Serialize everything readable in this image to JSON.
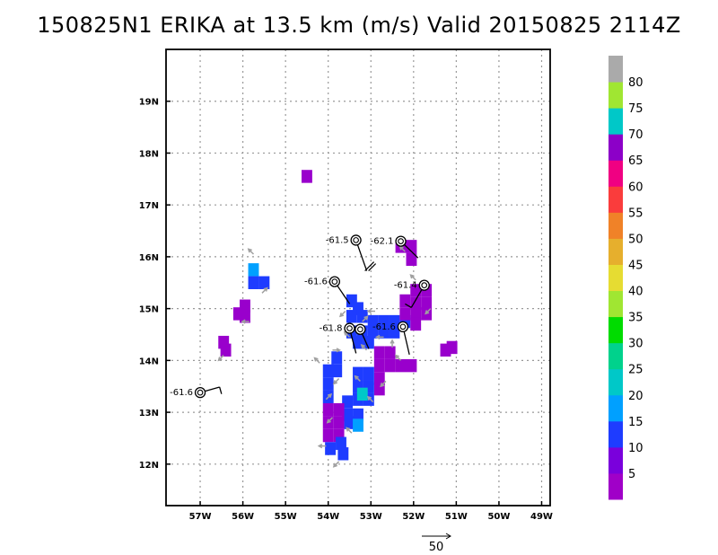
{
  "title": "150825N1 ERIKA at 13.5 km (m/s) Valid 20150825 2114Z",
  "map": {
    "lon_range": [
      -57.8,
      -48.8
    ],
    "lat_range": [
      11.2,
      20.0
    ],
    "lon_ticks": [
      {
        "v": -57,
        "label": "57W"
      },
      {
        "v": -56,
        "label": "56W"
      },
      {
        "v": -55,
        "label": "55W"
      },
      {
        "v": -54,
        "label": "54W"
      },
      {
        "v": -53,
        "label": "53W"
      },
      {
        "v": -52,
        "label": "52W"
      },
      {
        "v": -51,
        "label": "51W"
      },
      {
        "v": -50,
        "label": "50W"
      },
      {
        "v": -49,
        "label": "49W"
      }
    ],
    "lat_ticks": [
      {
        "v": 12,
        "label": "12N"
      },
      {
        "v": 13,
        "label": "13N"
      },
      {
        "v": 14,
        "label": "14N"
      },
      {
        "v": 15,
        "label": "15N"
      },
      {
        "v": 16,
        "label": "16N"
      },
      {
        "v": 17,
        "label": "17N"
      },
      {
        "v": 18,
        "label": "18N"
      },
      {
        "v": 19,
        "label": "19N"
      }
    ],
    "grid": "dotted"
  },
  "colorbar": {
    "labels": [
      "5",
      "10",
      "15",
      "20",
      "25",
      "30",
      "35",
      "40",
      "45",
      "50",
      "55",
      "60",
      "65",
      "70",
      "75",
      "80"
    ],
    "colors": [
      "#a000c8",
      "#7a00dc",
      "#1e3cff",
      "#00a0ff",
      "#00c8c8",
      "#00d28c",
      "#00dc00",
      "#a0e632",
      "#e6dc32",
      "#e6af2d",
      "#f08228",
      "#fa3c3c",
      "#f00082",
      "#8c00c8",
      "#00c8c8",
      "#a0e632",
      "#aaaaaa"
    ]
  },
  "cell_colors": {
    "purple": "#9900cc",
    "blue": "#1e3cff",
    "cyan": "#00a0ff",
    "teal": "#00c8c8"
  },
  "cells": [
    {
      "lon": -54.5,
      "lat": 17.55,
      "c": "purple"
    },
    {
      "lon": -55.75,
      "lat": 15.75,
      "c": "cyan"
    },
    {
      "lon": -55.75,
      "lat": 15.5,
      "c": "blue"
    },
    {
      "lon": -55.5,
      "lat": 15.5,
      "c": "blue"
    },
    {
      "lon": -55.95,
      "lat": 15.05,
      "c": "purple"
    },
    {
      "lon": -56.1,
      "lat": 14.9,
      "c": "purple"
    },
    {
      "lon": -55.95,
      "lat": 14.85,
      "c": "purple"
    },
    {
      "lon": -56.45,
      "lat": 14.35,
      "c": "purple"
    },
    {
      "lon": -56.4,
      "lat": 14.2,
      "c": "purple"
    },
    {
      "lon": -53.45,
      "lat": 15.15,
      "c": "blue"
    },
    {
      "lon": -53.3,
      "lat": 15.0,
      "c": "blue"
    },
    {
      "lon": -53.45,
      "lat": 14.85,
      "c": "blue"
    },
    {
      "lon": -53.2,
      "lat": 14.85,
      "c": "blue"
    },
    {
      "lon": -52.95,
      "lat": 14.75,
      "c": "blue"
    },
    {
      "lon": -52.7,
      "lat": 14.75,
      "c": "blue"
    },
    {
      "lon": -52.45,
      "lat": 14.75,
      "c": "blue"
    },
    {
      "lon": -52.2,
      "lat": 14.75,
      "c": "blue"
    },
    {
      "lon": -53.45,
      "lat": 14.55,
      "c": "blue"
    },
    {
      "lon": -53.2,
      "lat": 14.55,
      "c": "blue"
    },
    {
      "lon": -52.95,
      "lat": 14.55,
      "c": "blue"
    },
    {
      "lon": -52.7,
      "lat": 14.55,
      "c": "blue"
    },
    {
      "lon": -52.45,
      "lat": 14.55,
      "c": "blue"
    },
    {
      "lon": -53.3,
      "lat": 14.35,
      "c": "blue"
    },
    {
      "lon": -53.05,
      "lat": 14.35,
      "c": "blue"
    },
    {
      "lon": -52.3,
      "lat": 16.2,
      "c": "purple"
    },
    {
      "lon": -52.05,
      "lat": 16.2,
      "c": "purple"
    },
    {
      "lon": -52.05,
      "lat": 15.95,
      "c": "purple"
    },
    {
      "lon": -51.95,
      "lat": 15.35,
      "c": "purple"
    },
    {
      "lon": -51.7,
      "lat": 15.35,
      "c": "purple"
    },
    {
      "lon": -52.2,
      "lat": 15.15,
      "c": "purple"
    },
    {
      "lon": -51.95,
      "lat": 15.1,
      "c": "purple"
    },
    {
      "lon": -51.7,
      "lat": 15.1,
      "c": "purple"
    },
    {
      "lon": -52.2,
      "lat": 14.9,
      "c": "purple"
    },
    {
      "lon": -51.95,
      "lat": 14.9,
      "c": "purple"
    },
    {
      "lon": -51.7,
      "lat": 14.9,
      "c": "purple"
    },
    {
      "lon": -51.95,
      "lat": 14.7,
      "c": "purple"
    },
    {
      "lon": -51.1,
      "lat": 14.25,
      "c": "purple"
    },
    {
      "lon": -51.25,
      "lat": 14.2,
      "c": "purple"
    },
    {
      "lon": -52.8,
      "lat": 14.15,
      "c": "purple"
    },
    {
      "lon": -52.55,
      "lat": 14.15,
      "c": "purple"
    },
    {
      "lon": -52.8,
      "lat": 13.9,
      "c": "purple"
    },
    {
      "lon": -52.55,
      "lat": 13.9,
      "c": "purple"
    },
    {
      "lon": -52.3,
      "lat": 13.9,
      "c": "purple"
    },
    {
      "lon": -52.05,
      "lat": 13.9,
      "c": "purple"
    },
    {
      "lon": -52.8,
      "lat": 13.65,
      "c": "purple"
    },
    {
      "lon": -52.8,
      "lat": 13.45,
      "c": "purple"
    },
    {
      "lon": -53.8,
      "lat": 14.05,
      "c": "blue"
    },
    {
      "lon": -53.8,
      "lat": 13.8,
      "c": "blue"
    },
    {
      "lon": -54.0,
      "lat": 13.8,
      "c": "blue"
    },
    {
      "lon": -54.0,
      "lat": 13.55,
      "c": "blue"
    },
    {
      "lon": -54.0,
      "lat": 13.3,
      "c": "blue"
    },
    {
      "lon": -53.3,
      "lat": 13.75,
      "c": "blue"
    },
    {
      "lon": -53.05,
      "lat": 13.75,
      "c": "blue"
    },
    {
      "lon": -53.3,
      "lat": 13.5,
      "c": "blue"
    },
    {
      "lon": -53.05,
      "lat": 13.5,
      "c": "blue"
    },
    {
      "lon": -53.3,
      "lat": 13.25,
      "c": "blue"
    },
    {
      "lon": -53.05,
      "lat": 13.25,
      "c": "blue"
    },
    {
      "lon": -53.55,
      "lat": 13.2,
      "c": "blue"
    },
    {
      "lon": -53.55,
      "lat": 12.95,
      "c": "blue"
    },
    {
      "lon": -53.3,
      "lat": 12.95,
      "c": "blue"
    },
    {
      "lon": -54.0,
      "lat": 13.05,
      "c": "purple"
    },
    {
      "lon": -53.75,
      "lat": 13.05,
      "c": "purple"
    },
    {
      "lon": -54.0,
      "lat": 12.8,
      "c": "purple"
    },
    {
      "lon": -53.75,
      "lat": 12.8,
      "c": "purple"
    },
    {
      "lon": -53.5,
      "lat": 12.8,
      "c": "blue"
    },
    {
      "lon": -53.3,
      "lat": 12.75,
      "c": "cyan"
    },
    {
      "lon": -54.0,
      "lat": 12.55,
      "c": "purple"
    },
    {
      "lon": -53.75,
      "lat": 12.55,
      "c": "purple"
    },
    {
      "lon": -53.7,
      "lat": 12.4,
      "c": "blue"
    },
    {
      "lon": -53.95,
      "lat": 12.3,
      "c": "blue"
    },
    {
      "lon": -53.65,
      "lat": 12.2,
      "c": "blue"
    },
    {
      "lon": -53.2,
      "lat": 13.35,
      "c": "teal"
    }
  ],
  "arrows": [
    {
      "lon": -55.75,
      "lat": 16.05,
      "u": -1,
      "v": 1
    },
    {
      "lon": -55.55,
      "lat": 15.3,
      "u": 1,
      "v": 1
    },
    {
      "lon": -55.85,
      "lat": 14.75,
      "u": -1,
      "v": 0
    },
    {
      "lon": -53.6,
      "lat": 14.95,
      "u": -1,
      "v": -1
    },
    {
      "lon": -53.2,
      "lat": 14.75,
      "u": 1,
      "v": 1
    },
    {
      "lon": -52.9,
      "lat": 14.95,
      "u": -1,
      "v": 0
    },
    {
      "lon": -53.5,
      "lat": 14.45,
      "u": -1,
      "v": 1
    },
    {
      "lon": -52.7,
      "lat": 14.45,
      "u": -1,
      "v": 0
    },
    {
      "lon": -52.5,
      "lat": 14.25,
      "u": 0,
      "v": 1
    },
    {
      "lon": -53.1,
      "lat": 14.2,
      "u": -1,
      "v": 1
    },
    {
      "lon": -54.2,
      "lat": 13.95,
      "u": -1,
      "v": 1
    },
    {
      "lon": -53.75,
      "lat": 13.65,
      "u": -1,
      "v": -1
    },
    {
      "lon": -53.25,
      "lat": 13.6,
      "u": -1,
      "v": 1
    },
    {
      "lon": -52.95,
      "lat": 13.2,
      "u": -1,
      "v": 1
    },
    {
      "lon": -54.05,
      "lat": 13.25,
      "u": 1,
      "v": 1
    },
    {
      "lon": -53.9,
      "lat": 12.9,
      "u": -1,
      "v": -1
    },
    {
      "lon": -53.45,
      "lat": 12.6,
      "u": -1,
      "v": 1
    },
    {
      "lon": -54.05,
      "lat": 12.35,
      "u": -1,
      "v": 0
    },
    {
      "lon": -53.75,
      "lat": 12.05,
      "u": -1,
      "v": -1
    },
    {
      "lon": -52.3,
      "lat": 14.0,
      "u": -1,
      "v": 1
    },
    {
      "lon": -52.65,
      "lat": 13.6,
      "u": -1,
      "v": -1
    },
    {
      "lon": -51.95,
      "lat": 15.55,
      "u": -1,
      "v": 1
    },
    {
      "lon": -51.6,
      "lat": 15.0,
      "u": -1,
      "v": -1
    },
    {
      "lon": -52.2,
      "lat": 16.1,
      "u": -1,
      "v": 1
    },
    {
      "lon": -56.45,
      "lat": 14.1,
      "u": -1,
      "v": -1
    },
    {
      "lon": -53.9,
      "lat": 14.2,
      "u": 1,
      "v": 0
    }
  ],
  "centers": [
    {
      "lon": -53.35,
      "lat": 16.32,
      "label": "-61.5",
      "bx": 0.25,
      "by": -0.55,
      "bar": "pennant"
    },
    {
      "lon": -52.3,
      "lat": 16.3,
      "label": "-62.1",
      "bx": 0.4,
      "by": -0.3,
      "bar": "none"
    },
    {
      "lon": -53.85,
      "lat": 15.52,
      "label": "-61.6",
      "bx": 0.35,
      "by": -0.4,
      "bar": "none"
    },
    {
      "lon": -51.75,
      "lat": 15.45,
      "label": "-61.4",
      "bx": -0.3,
      "by": -0.4,
      "bar": "short"
    },
    {
      "lon": -53.5,
      "lat": 14.62,
      "label": "-61.8",
      "bx": 0.15,
      "by": -0.45,
      "bar": "none"
    },
    {
      "lon": -53.25,
      "lat": 14.6,
      "label": "",
      "bx": 0.2,
      "by": -0.35,
      "bar": "none"
    },
    {
      "lon": -52.25,
      "lat": 14.65,
      "label": "-61.6",
      "bx": 0.15,
      "by": -0.5,
      "bar": "none"
    },
    {
      "lon": -57.0,
      "lat": 13.38,
      "label": "-61.6",
      "bx": 0.45,
      "by": 0.1,
      "bar": "short"
    }
  ],
  "ref_vector_label": "50"
}
